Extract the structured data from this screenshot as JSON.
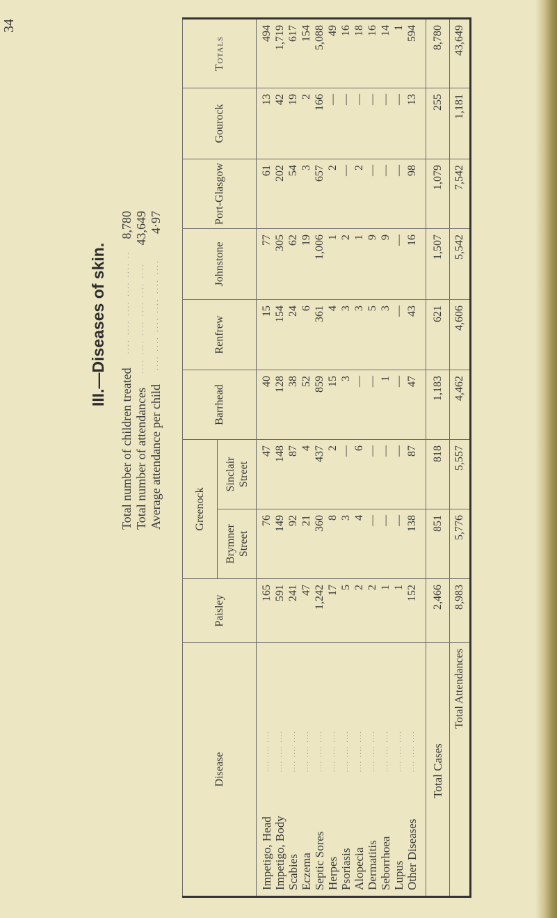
{
  "page_number": "34",
  "title": "III.—Diseases of skin.",
  "summary": [
    {
      "label": "Total number of children treated",
      "value": "8,780"
    },
    {
      "label": "Total number of attendances",
      "value": "43,649"
    },
    {
      "label": "Average attendance per child",
      "value": "4·97"
    }
  ],
  "table": {
    "disease_header": "Disease",
    "group_header": "Greenock",
    "diseases": [
      "Impetigo, Head",
      "Impetigo, Body",
      "Scabies",
      "Eczema",
      "Septic Sores",
      "Herpes",
      "Psoriasis",
      "Alopecia",
      "Dermatitis",
      "Seborrhoea",
      "Lupus",
      "Other Diseases"
    ],
    "total_cases_label": "Total Cases",
    "total_attendances_label": "Total Attendances",
    "columns": [
      {
        "header": "Paisley",
        "values": [
          "165",
          "591",
          "241",
          "47",
          "1,242",
          "17",
          "5",
          "2",
          "2",
          "1",
          "1",
          "152"
        ],
        "total_cases": "2,466",
        "total_attendances": "8,983"
      },
      {
        "header": "Brymner Street",
        "values": [
          "76",
          "149",
          "92",
          "21",
          "360",
          "8",
          "3",
          "4",
          "—",
          "—",
          "—",
          "138"
        ],
        "total_cases": "851",
        "total_attendances": "5,776"
      },
      {
        "header": "Sinclair Street",
        "values": [
          "47",
          "148",
          "87",
          "4",
          "437",
          "2",
          "—",
          "6",
          "—",
          "—",
          "—",
          "87"
        ],
        "total_cases": "818",
        "total_attendances": "5,557"
      },
      {
        "header": "Barrhead",
        "values": [
          "40",
          "128",
          "38",
          "52",
          "859",
          "15",
          "3",
          "—",
          "—",
          "1",
          "—",
          "47"
        ],
        "total_cases": "1,183",
        "total_attendances": "4,462"
      },
      {
        "header": "Renfrew",
        "values": [
          "15",
          "154",
          "24",
          "6",
          "361",
          "4",
          "3",
          "3",
          "5",
          "3",
          "—",
          "43"
        ],
        "total_cases": "621",
        "total_attendances": "4,606"
      },
      {
        "header": "Johnstone",
        "values": [
          "77",
          "305",
          "62",
          "19",
          "1,006",
          "1",
          "2",
          "1",
          "9",
          "9",
          "—",
          "16"
        ],
        "total_cases": "1,507",
        "total_attendances": "5,542"
      },
      {
        "header": "Port-Glasgow",
        "values": [
          "61",
          "202",
          "54",
          "3",
          "657",
          "2",
          "—",
          "2",
          "—",
          "—",
          "—",
          "98"
        ],
        "total_cases": "1,079",
        "total_attendances": "7,542"
      },
      {
        "header": "Gourock",
        "values": [
          "13",
          "42",
          "19",
          "2",
          "166",
          "—",
          "—",
          "—",
          "—",
          "—",
          "—",
          "13"
        ],
        "total_cases": "255",
        "total_attendances": "1,181"
      },
      {
        "header": "Totals",
        "values": [
          "494",
          "1,719",
          "617",
          "154",
          "5,088",
          "49",
          "16",
          "18",
          "16",
          "14",
          "1",
          "594"
        ],
        "total_cases": "8,780",
        "total_attendances": "43,649"
      }
    ]
  }
}
